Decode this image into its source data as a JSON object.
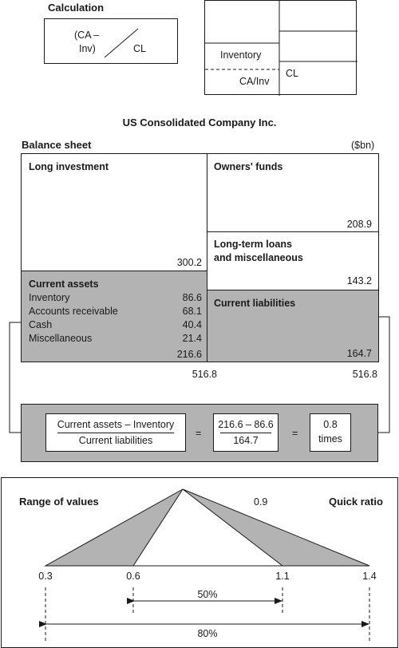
{
  "calc": {
    "title": "Calculation",
    "ca_minus": "(CA –",
    "inv": "Inv)",
    "cl": "CL",
    "inventory": "Inventory",
    "ca_inv": "CA/Inv",
    "cl2": "CL"
  },
  "company": "US Consolidated Company Inc.",
  "balance_sheet": {
    "title": "Balance sheet",
    "unit": "($bn)",
    "long_investment": {
      "label": "Long investment",
      "value": "300.2"
    },
    "current_assets": {
      "label": "Current assets",
      "items": [
        {
          "label": "Inventory",
          "value": "86.6"
        },
        {
          "label": "Accounts receivable",
          "value": "68.1"
        },
        {
          "label": "Cash",
          "value": "40.4"
        },
        {
          "label": "Miscellaneous",
          "value": "21.4"
        }
      ],
      "total": "216.6"
    },
    "owners_funds": {
      "label": "Owners' funds",
      "value": "208.9"
    },
    "long_term_loans": {
      "label1": "Long-term loans",
      "label2": "and miscellaneous",
      "value": "143.2"
    },
    "current_liabilities": {
      "label": "Current liabilities",
      "value": "164.7"
    },
    "total_left": "516.8",
    "total_right": "516.8"
  },
  "formula": {
    "numerator": "Current assets – Inventory",
    "denominator": "Current liabilities",
    "equals1": "=",
    "num_value": "216.6 – 86.6",
    "den_value": "164.7",
    "equals2": "=",
    "result": "0.8",
    "result_unit": "times"
  },
  "range": {
    "title": "Range of values",
    "ratio_name": "Quick ratio",
    "peak_value": "0.9",
    "ticks": [
      "0.3",
      "0.6",
      "1.1",
      "1.4"
    ],
    "inner_span": "50%",
    "outer_span": "80%"
  }
}
